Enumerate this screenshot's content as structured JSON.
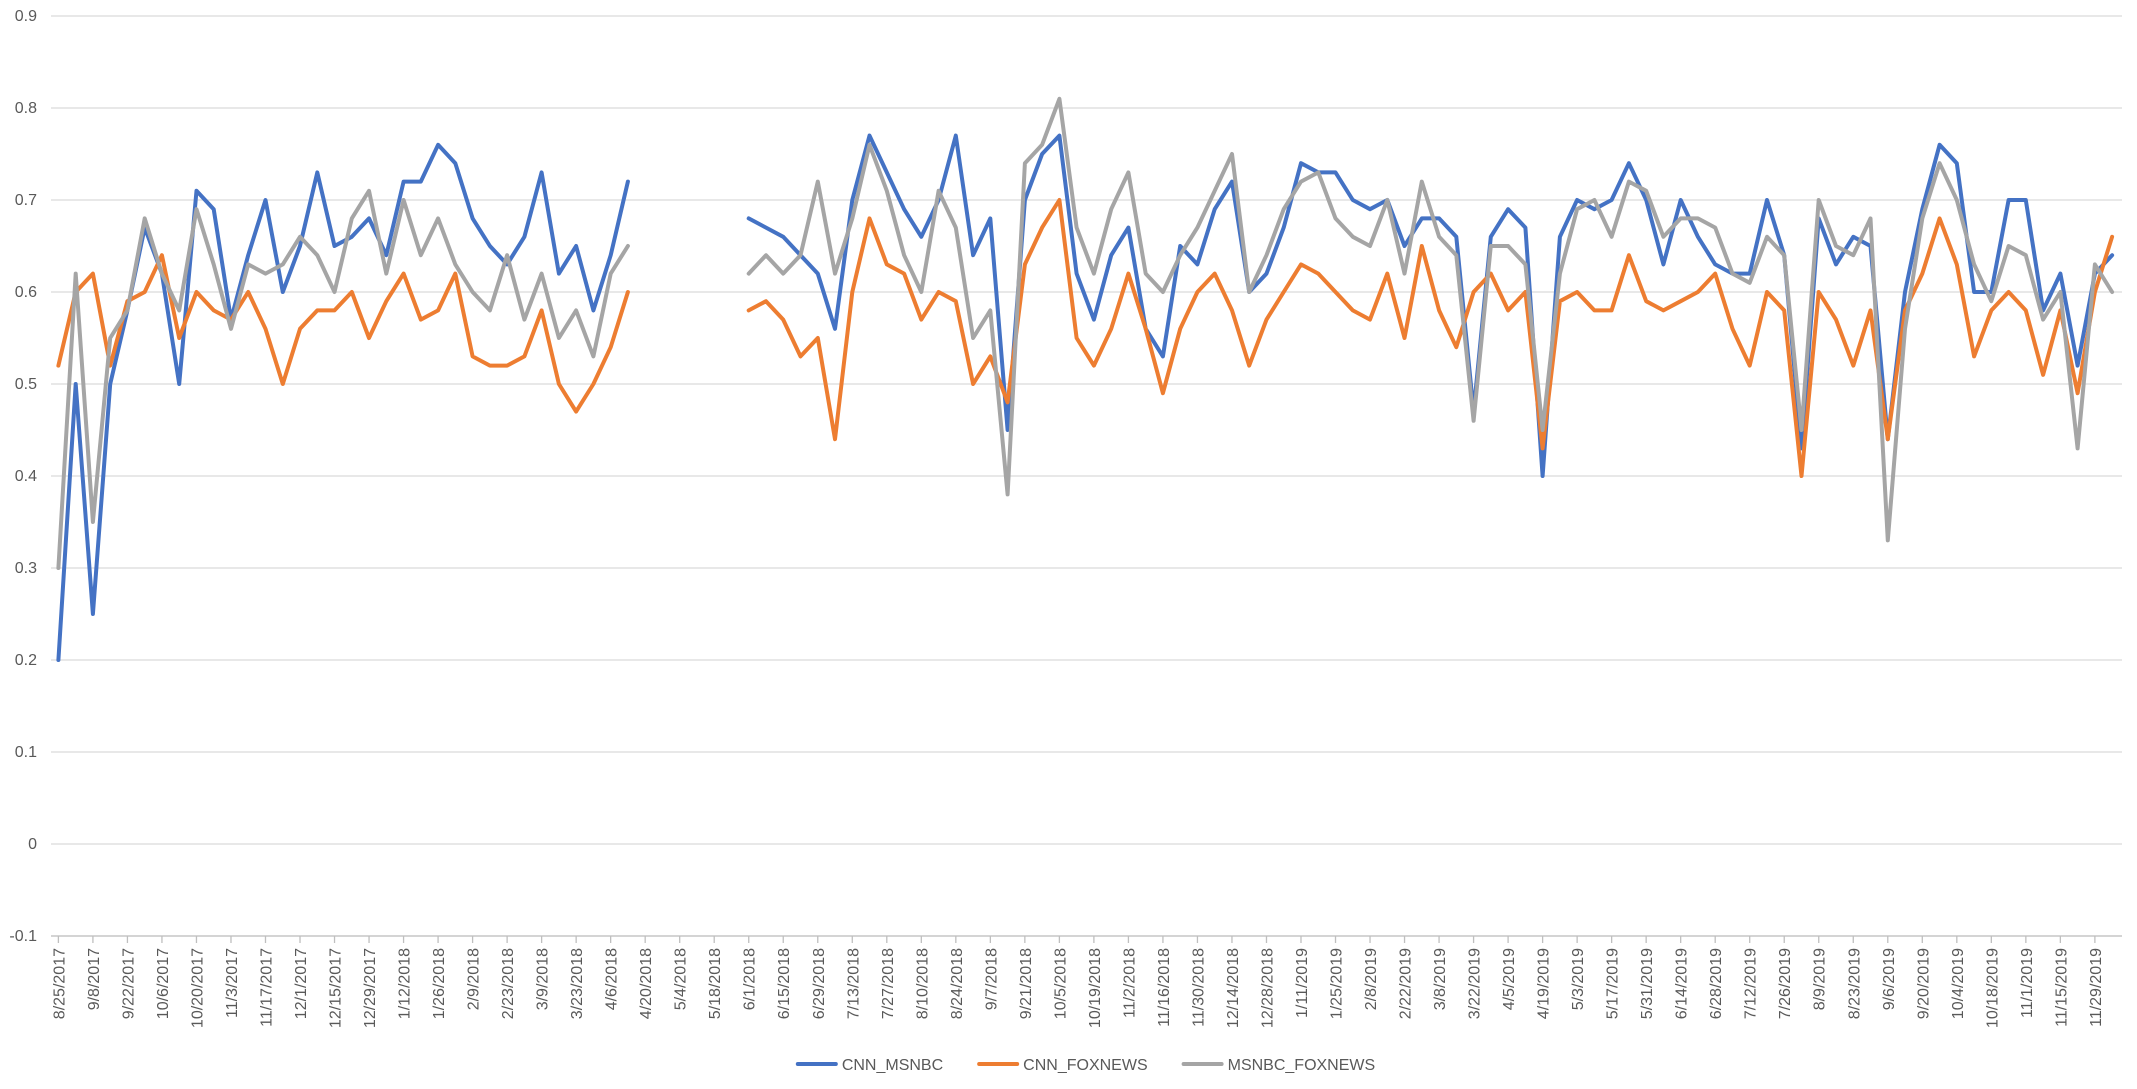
{
  "chart_data": {
    "type": "line",
    "x": [
      "8/25/2017",
      "9/1/2017",
      "9/8/2017",
      "9/15/2017",
      "9/22/2017",
      "9/29/2017",
      "10/6/2017",
      "10/13/2017",
      "10/20/2017",
      "10/27/2017",
      "11/3/2017",
      "11/10/2017",
      "11/17/2017",
      "11/24/2017",
      "12/1/2017",
      "12/8/2017",
      "12/15/2017",
      "12/22/2017",
      "12/29/2017",
      "1/5/2018",
      "1/12/2018",
      "1/19/2018",
      "1/26/2018",
      "2/2/2018",
      "2/9/2018",
      "2/16/2018",
      "2/23/2018",
      "3/2/2018",
      "3/9/2018",
      "3/16/2018",
      "3/23/2018",
      "3/30/2018",
      "4/6/2018",
      "4/13/2018",
      "4/20/2018",
      "4/27/2018",
      "5/4/2018",
      "5/11/2018",
      "5/18/2018",
      "5/25/2018",
      "6/1/2018",
      "6/8/2018",
      "6/15/2018",
      "6/22/2018",
      "6/29/2018",
      "7/6/2018",
      "7/13/2018",
      "7/20/2018",
      "7/27/2018",
      "8/3/2018",
      "8/10/2018",
      "8/17/2018",
      "8/24/2018",
      "8/31/2018",
      "9/7/2018",
      "9/14/2018",
      "9/21/2018",
      "9/28/2018",
      "10/5/2018",
      "10/12/2018",
      "10/19/2018",
      "10/26/2018",
      "11/2/2018",
      "11/9/2018",
      "11/16/2018",
      "11/23/2018",
      "11/30/2018",
      "12/7/2018",
      "12/14/2018",
      "12/21/2018",
      "12/28/2018",
      "1/4/2019",
      "1/11/2019",
      "1/18/2019",
      "1/25/2019",
      "2/1/2019",
      "2/8/2019",
      "2/15/2019",
      "2/22/2019",
      "3/1/2019",
      "3/8/2019",
      "3/15/2019",
      "3/22/2019",
      "3/29/2019",
      "4/5/2019",
      "4/12/2019",
      "4/19/2019",
      "4/26/2019",
      "5/3/2019",
      "5/10/2019",
      "5/17/2019",
      "5/24/2019",
      "5/31/2019",
      "6/7/2019",
      "6/14/2019",
      "6/21/2019",
      "6/28/2019",
      "7/5/2019",
      "7/12/2019",
      "7/19/2019",
      "7/26/2019",
      "8/2/2019",
      "8/9/2019",
      "8/16/2019",
      "8/23/2019",
      "8/30/2019",
      "9/6/2019",
      "9/13/2019",
      "9/20/2019",
      "9/27/2019",
      "10/4/2019",
      "10/11/2019",
      "10/18/2019",
      "10/25/2019",
      "11/1/2019",
      "11/8/2019",
      "11/15/2019",
      "11/22/2019",
      "11/29/2019",
      "12/6/2019"
    ],
    "series": [
      {
        "name": "CNN_MSNBC",
        "color": "#4472c4",
        "values": [
          0.2,
          0.5,
          0.25,
          0.5,
          0.58,
          0.67,
          0.62,
          0.5,
          0.71,
          0.69,
          0.57,
          0.64,
          0.7,
          0.6,
          0.65,
          0.73,
          0.65,
          0.66,
          0.68,
          0.64,
          0.72,
          0.72,
          0.76,
          0.74,
          0.68,
          0.65,
          0.63,
          0.66,
          0.73,
          0.62,
          0.65,
          0.58,
          0.64,
          0.72,
          null,
          null,
          null,
          null,
          null,
          null,
          0.68,
          0.67,
          0.66,
          0.64,
          0.62,
          0.56,
          0.7,
          0.77,
          0.73,
          0.69,
          0.66,
          0.7,
          0.77,
          0.64,
          0.68,
          0.45,
          0.7,
          0.75,
          0.77,
          0.62,
          0.57,
          0.64,
          0.67,
          0.56,
          0.53,
          0.65,
          0.63,
          0.69,
          0.72,
          0.6,
          0.62,
          0.67,
          0.74,
          0.73,
          0.73,
          0.7,
          0.69,
          0.7,
          0.65,
          0.68,
          0.68,
          0.66,
          0.47,
          0.66,
          0.69,
          0.67,
          0.4,
          0.66,
          0.7,
          0.69,
          0.7,
          0.74,
          0.7,
          0.63,
          0.7,
          0.66,
          0.63,
          0.62,
          0.62,
          0.7,
          0.64,
          0.43,
          0.68,
          0.63,
          0.66,
          0.65,
          0.44,
          0.6,
          0.69,
          0.76,
          0.74,
          0.6,
          0.6,
          0.7,
          0.7,
          0.58,
          0.62,
          0.52,
          0.62,
          0.64
        ]
      },
      {
        "name": "CNN_FOXNEWS",
        "color": "#ed7d31",
        "values": [
          0.52,
          0.6,
          0.62,
          0.52,
          0.59,
          0.6,
          0.64,
          0.55,
          0.6,
          0.58,
          0.57,
          0.6,
          0.56,
          0.5,
          0.56,
          0.58,
          0.58,
          0.6,
          0.55,
          0.59,
          0.62,
          0.57,
          0.58,
          0.62,
          0.53,
          0.52,
          0.52,
          0.53,
          0.58,
          0.5,
          0.47,
          0.5,
          0.54,
          0.6,
          null,
          null,
          null,
          null,
          null,
          null,
          0.58,
          0.59,
          0.57,
          0.53,
          0.55,
          0.44,
          0.6,
          0.68,
          0.63,
          0.62,
          0.57,
          0.6,
          0.59,
          0.5,
          0.53,
          0.48,
          0.63,
          0.67,
          0.7,
          0.55,
          0.52,
          0.56,
          0.62,
          0.56,
          0.49,
          0.56,
          0.6,
          0.62,
          0.58,
          0.52,
          0.57,
          0.6,
          0.63,
          0.62,
          0.6,
          0.58,
          0.57,
          0.62,
          0.55,
          0.65,
          0.58,
          0.54,
          0.6,
          0.62,
          0.58,
          0.6,
          0.43,
          0.59,
          0.6,
          0.58,
          0.58,
          0.64,
          0.59,
          0.58,
          0.59,
          0.6,
          0.62,
          0.56,
          0.52,
          0.6,
          0.58,
          0.4,
          0.6,
          0.57,
          0.52,
          0.58,
          0.44,
          0.58,
          0.62,
          0.68,
          0.63,
          0.53,
          0.58,
          0.6,
          0.58,
          0.51,
          0.58,
          0.49,
          0.6,
          0.66
        ]
      },
      {
        "name": "MSNBC_FOXNEWS",
        "color": "#a5a5a5",
        "values": [
          0.3,
          0.62,
          0.35,
          0.55,
          0.58,
          0.68,
          0.62,
          0.58,
          0.69,
          0.63,
          0.56,
          0.63,
          0.62,
          0.63,
          0.66,
          0.64,
          0.6,
          0.68,
          0.71,
          0.62,
          0.7,
          0.64,
          0.68,
          0.63,
          0.6,
          0.58,
          0.64,
          0.57,
          0.62,
          0.55,
          0.58,
          0.53,
          0.62,
          0.65,
          null,
          null,
          null,
          null,
          null,
          null,
          0.62,
          0.64,
          0.62,
          0.64,
          0.72,
          0.62,
          0.68,
          0.76,
          0.71,
          0.64,
          0.6,
          0.71,
          0.67,
          0.55,
          0.58,
          0.38,
          0.74,
          0.76,
          0.81,
          0.67,
          0.62,
          0.69,
          0.73,
          0.62,
          0.6,
          0.64,
          0.67,
          0.71,
          0.75,
          0.6,
          0.64,
          0.69,
          0.72,
          0.73,
          0.68,
          0.66,
          0.65,
          0.7,
          0.62,
          0.72,
          0.66,
          0.64,
          0.46,
          0.65,
          0.65,
          0.63,
          0.45,
          0.62,
          0.69,
          0.7,
          0.66,
          0.72,
          0.71,
          0.66,
          0.68,
          0.68,
          0.67,
          0.62,
          0.61,
          0.66,
          0.64,
          0.45,
          0.7,
          0.65,
          0.64,
          0.68,
          0.33,
          0.56,
          0.68,
          0.74,
          0.7,
          0.63,
          0.59,
          0.65,
          0.64,
          0.57,
          0.6,
          0.43,
          0.63,
          0.6
        ]
      }
    ],
    "xlim": [
      "8/22/2017",
      "12/10/2019"
    ],
    "xticks": [
      "8/25/2017",
      "9/8/2017",
      "9/22/2017",
      "10/6/2017",
      "10/20/2017",
      "11/3/2017",
      "11/17/2017",
      "12/1/2017",
      "12/15/2017",
      "12/29/2017",
      "1/12/2018",
      "1/26/2018",
      "2/9/2018",
      "2/23/2018",
      "3/9/2018",
      "3/23/2018",
      "4/6/2018",
      "4/20/2018",
      "5/4/2018",
      "5/18/2018",
      "6/1/2018",
      "6/15/2018",
      "6/29/2018",
      "7/13/2018",
      "7/27/2018",
      "8/10/2018",
      "8/24/2018",
      "9/7/2018",
      "9/21/2018",
      "10/5/2018",
      "10/19/2018",
      "11/2/2018",
      "11/16/2018",
      "11/30/2018",
      "12/14/2018",
      "12/28/2018",
      "1/11/2019",
      "1/25/2019",
      "2/8/2019",
      "2/22/2019",
      "3/8/2019",
      "3/22/2019",
      "4/5/2019",
      "4/19/2019",
      "5/3/2019",
      "5/17/2019",
      "5/31/2019",
      "6/14/2019",
      "6/28/2019",
      "7/12/2019",
      "7/26/2019",
      "8/9/2019",
      "8/23/2019",
      "9/6/2019",
      "9/20/2019",
      "10/4/2019",
      "10/18/2019",
      "11/1/2019",
      "11/15/2019",
      "11/29/2019"
    ],
    "ylim": [
      -0.1,
      0.9
    ],
    "yticks": [
      -0.1,
      0,
      0.1,
      0.2,
      0.3,
      0.4,
      0.5,
      0.6,
      0.7,
      0.8,
      0.9
    ],
    "grid": true,
    "legend": "bottom"
  }
}
